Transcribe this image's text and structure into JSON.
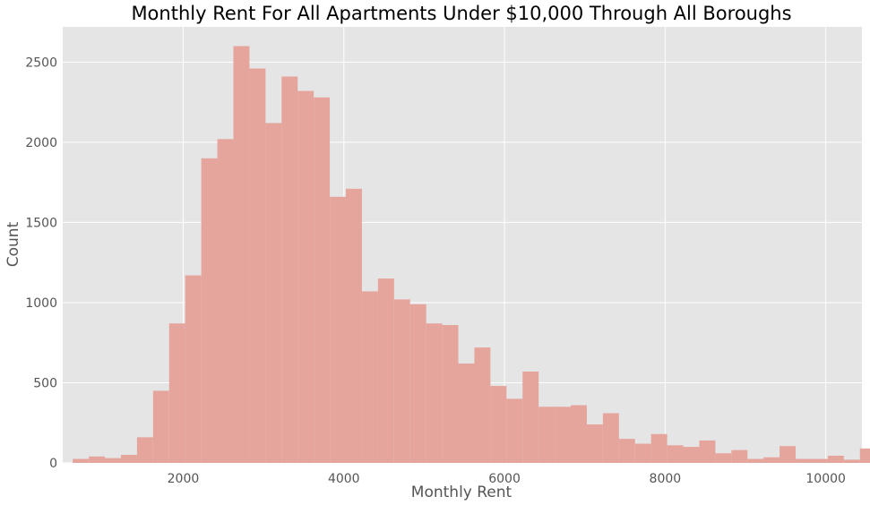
{
  "chart_data": {
    "type": "bar",
    "title": "Monthly Rent For All Apartments Under $10,000 Through All Boroughs",
    "xlabel": "Monthly Rent",
    "ylabel": "Count",
    "xlim": [
      500,
      10450
    ],
    "ylim": [
      0,
      2720
    ],
    "xticks": [
      2000,
      4000,
      6000,
      8000,
      10000
    ],
    "xtick_labels": [
      "2000",
      "4000",
      "6000",
      "8000",
      "10000"
    ],
    "yticks": [
      0,
      500,
      1000,
      1500,
      2000,
      2500
    ],
    "ytick_labels": [
      "0",
      "500",
      "1000",
      "1500",
      "2000",
      "2500"
    ],
    "grid": true,
    "bins": {
      "start": 625,
      "width": 200,
      "counts": [
        25,
        40,
        30,
        50,
        160,
        450,
        870,
        1170,
        1900,
        2020,
        2600,
        2460,
        2120,
        2410,
        2320,
        2280,
        1660,
        1710,
        1070,
        1150,
        1020,
        990,
        870,
        860,
        620,
        720,
        480,
        400,
        570,
        350,
        350,
        360,
        240,
        310,
        150,
        120,
        180,
        110,
        100,
        140,
        60,
        80,
        25,
        35,
        105,
        25,
        25,
        45,
        20,
        90
      ]
    },
    "colors": {
      "bar": "#e5a59c",
      "plot_background": "#e5e5e5",
      "grid": "#ffffff"
    }
  }
}
